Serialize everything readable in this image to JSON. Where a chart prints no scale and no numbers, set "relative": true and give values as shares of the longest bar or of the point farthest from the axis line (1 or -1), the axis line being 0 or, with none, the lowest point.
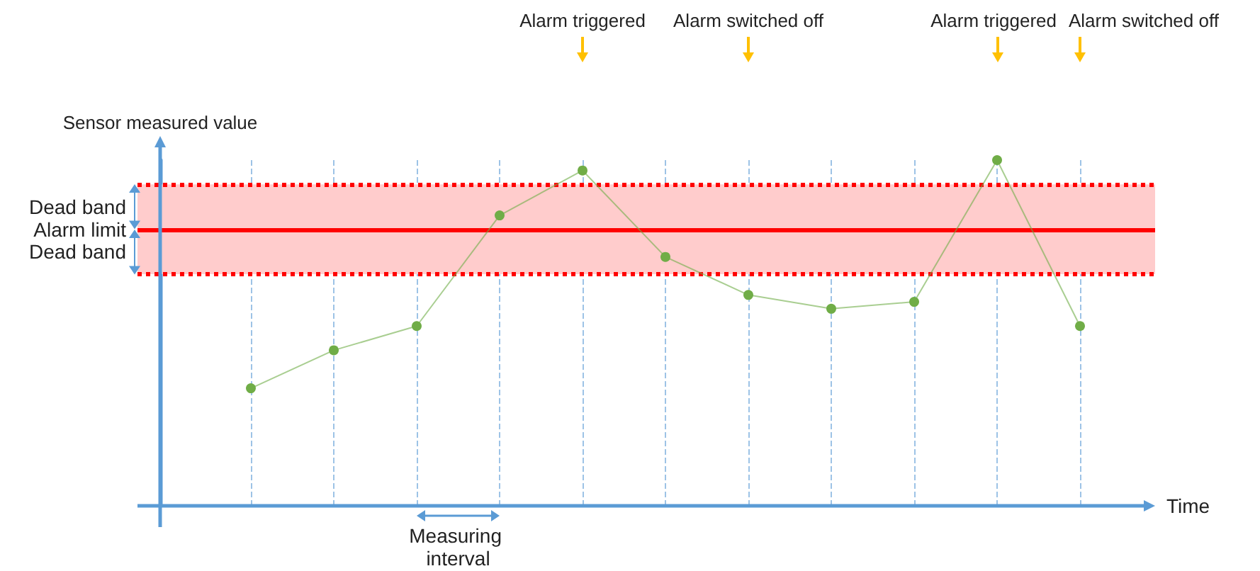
{
  "chart_data": {
    "type": "line",
    "relative": true,
    "xlabel": "Time",
    "ylabel": "Sensor measured value",
    "categories": [
      null,
      null,
      null,
      null,
      null,
      null,
      null,
      null,
      null,
      null,
      null
    ],
    "series": [
      {
        "color": "#70ad47",
        "values": [
          0.34,
          0.45,
          0.52,
          0.84,
          0.97,
          0.72,
          0.61,
          0.57,
          0.59,
          1,
          0.52
        ]
      }
    ],
    "marker": "circle",
    "grid": "x",
    "ref_lines": [
      {
        "axis": "y",
        "value": 0.8,
        "label": "Alarm limit",
        "color": "#ff0000",
        "line_style": "solid"
      },
      {
        "axis": "y",
        "value": 0.93,
        "color": "#ff0000",
        "line_style": "dotted"
      },
      {
        "axis": "y",
        "value": 0.67,
        "color": "#ff0000",
        "line_style": "dotted"
      }
    ],
    "bands": [
      {
        "axis": "y",
        "from": 0.8,
        "to": 0.93,
        "label": "Dead band",
        "color": "#ffcccc"
      },
      {
        "axis": "y",
        "from": 0.67,
        "to": 0.8,
        "label": "Dead band",
        "color": "#ffcccc"
      }
    ],
    "annotations": [
      "Alarm triggered",
      "Alarm switched off",
      "Alarm triggered",
      "Alarm switched off",
      "Measuring interval"
    ]
  }
}
